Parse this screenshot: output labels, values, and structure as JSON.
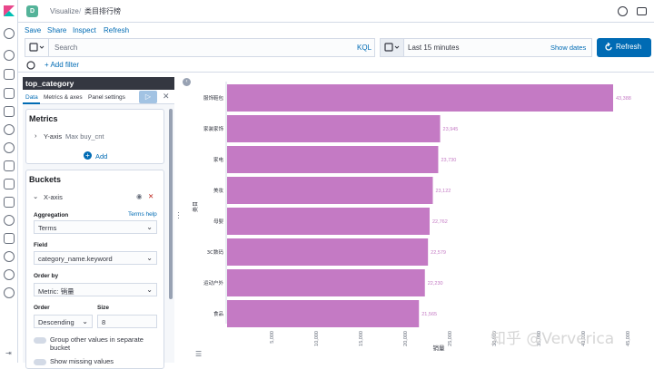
{
  "header": {
    "space_initial": "D",
    "breadcrumbs": [
      "Visualize",
      "类目排行榜"
    ]
  },
  "topmenu": [
    "Save",
    "Share",
    "Inspect",
    "Refresh"
  ],
  "query": {
    "placeholder": "Search",
    "language": "KQL"
  },
  "time": {
    "range": "Last 15 minutes",
    "show_dates": "Show dates",
    "refresh_label": "Refresh"
  },
  "filter": {
    "add_label": "+ Add filter"
  },
  "editor": {
    "title": "top_category",
    "tabs": [
      "Data",
      "Metrics & axes",
      "Panel settings"
    ],
    "metrics": {
      "title": "Metrics",
      "item_axis": "Y-axis",
      "item_desc": "Max buy_cnt",
      "add_label": "Add"
    },
    "buckets": {
      "title": "Buckets",
      "item_axis": "X-axis",
      "aggregation_label": "Aggregation",
      "aggregation_help": "Terms help",
      "aggregation_value": "Terms",
      "field_label": "Field",
      "field_value": "category_name.keyword",
      "orderby_label": "Order by",
      "orderby_value": "Metric: 销量",
      "order_label": "Order",
      "order_value": "Descending",
      "size_label": "Size",
      "size_value": "8",
      "group_other": "Group other values in separate bucket",
      "show_missing": "Show missing values"
    }
  },
  "chart_data": {
    "type": "bar",
    "orientation": "horizontal",
    "categories": [
      "服饰鞋包",
      "家装家饰",
      "家电",
      "美妆",
      "母婴",
      "3C数码",
      "运动户外",
      "食品"
    ],
    "values": [
      43388,
      23945,
      23730,
      23122,
      22762,
      22579,
      22230,
      21565
    ],
    "value_labels": [
      "43,388",
      "23,945",
      "23,730",
      "23,122",
      "22,762",
      "22,579",
      "22,230",
      "21,565"
    ],
    "xlabel": "销量",
    "ylabel": "类目",
    "xlim": [
      0,
      45000
    ],
    "xticks": [
      "5,000",
      "10,000",
      "15,000",
      "20,000",
      "25,000",
      "30,000",
      "35,000",
      "40,000",
      "45,000"
    ],
    "xtick_values": [
      5000,
      10000,
      15000,
      20000,
      25000,
      30000,
      35000,
      40000,
      45000
    ],
    "bar_color": "#c47ac4",
    "label_color": "#c47ac4"
  },
  "watermark": "知乎 @Ververica",
  "colors": {
    "accent": "#006bb4",
    "nav_dark": "#343741",
    "badge": "#54b399"
  }
}
